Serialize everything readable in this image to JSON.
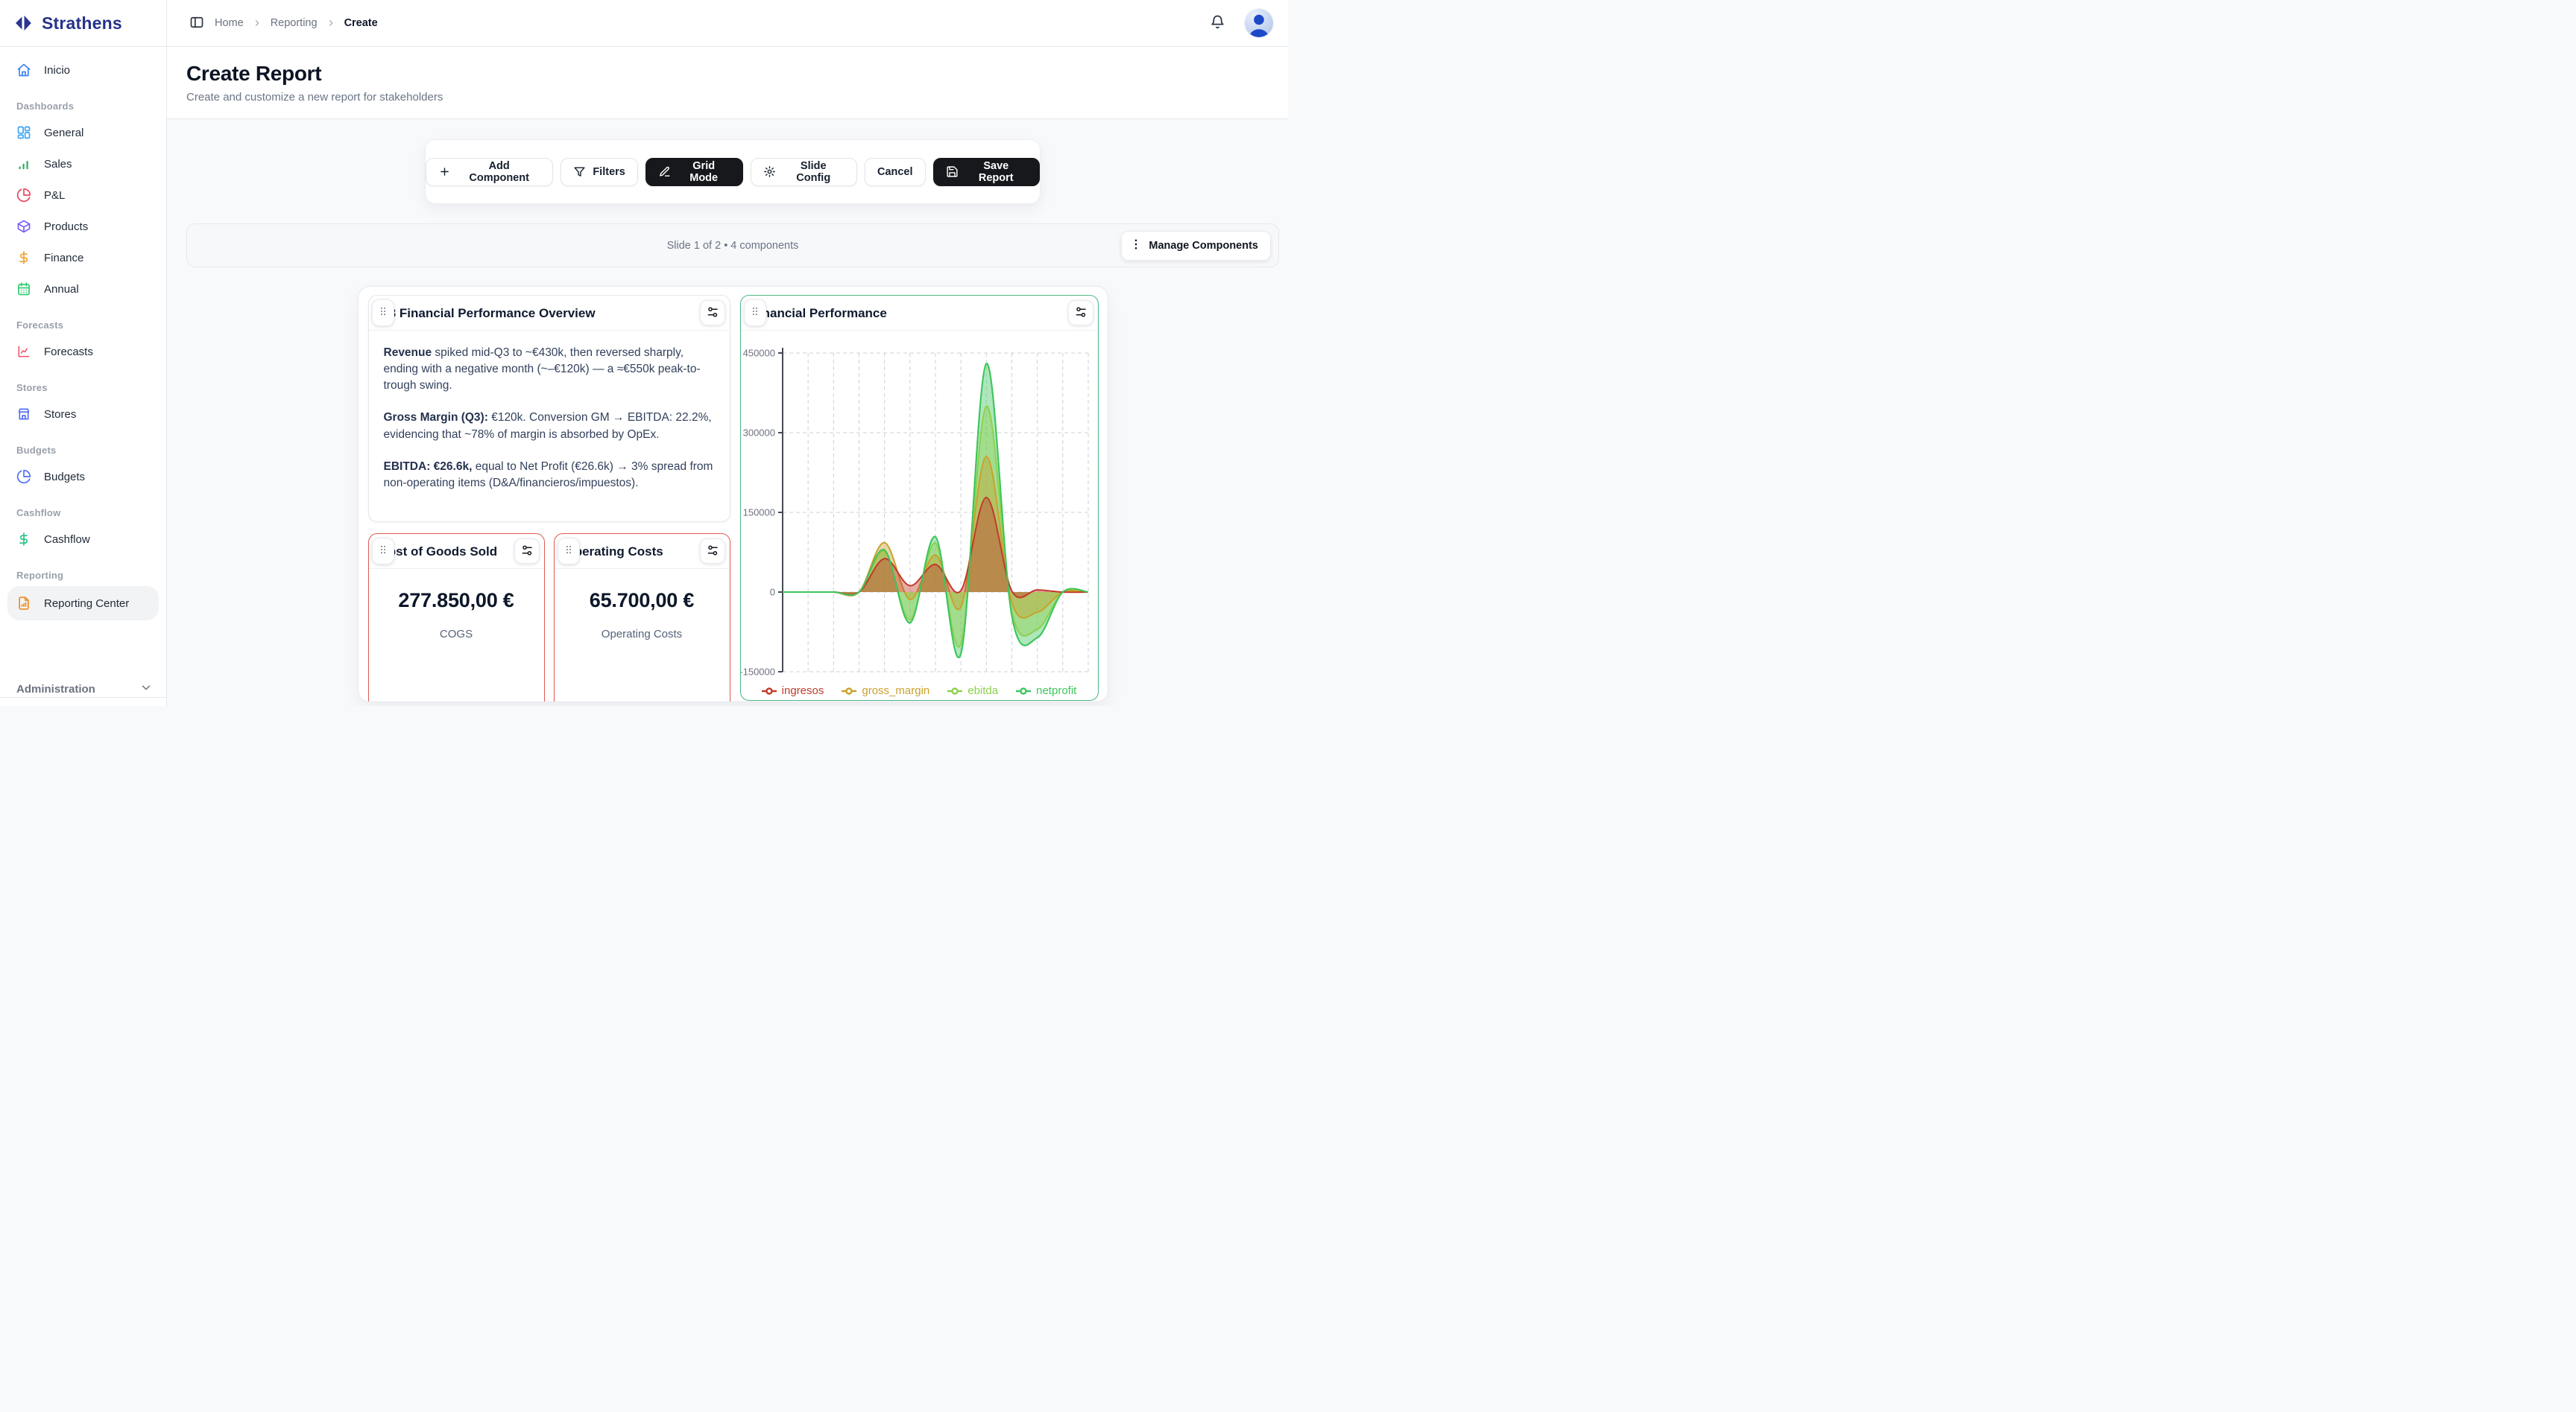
{
  "brand": {
    "name": "Strathens",
    "color": "#27338a"
  },
  "topbar": {
    "breadcrumb": [
      {
        "label": "Home",
        "current": false
      },
      {
        "label": "Reporting",
        "current": false
      },
      {
        "label": "Create",
        "current": true
      }
    ]
  },
  "page": {
    "title": "Create Report",
    "subtitle": "Create and customize a new report for stakeholders"
  },
  "toolbar": {
    "buttons": [
      {
        "id": "add-component",
        "label": "Add Component",
        "icon": "plus",
        "variant": "light"
      },
      {
        "id": "filters",
        "label": "Filters",
        "icon": "funnel",
        "variant": "light"
      },
      {
        "id": "grid-mode",
        "label": "Grid Mode",
        "icon": "pencil",
        "variant": "dark"
      },
      {
        "id": "slide-config",
        "label": "Slide Config",
        "icon": "gear",
        "variant": "light"
      },
      {
        "id": "cancel",
        "label": "Cancel",
        "icon": null,
        "variant": "light"
      },
      {
        "id": "save-report",
        "label": "Save Report",
        "icon": "save",
        "variant": "dark"
      }
    ]
  },
  "slidebar": {
    "status": "Slide 1 of 2 • 4 components",
    "manage_label": "Manage Components"
  },
  "sidebar": {
    "admin_label": "Administration",
    "groups": [
      {
        "section": null,
        "items": [
          {
            "label": "Inicio",
            "icon": "home",
            "color": "#3b82f6"
          }
        ]
      },
      {
        "section": "Dashboards",
        "items": [
          {
            "label": "General",
            "icon": "grid",
            "color": "#38a4f8"
          },
          {
            "label": "Sales",
            "icon": "bar-chart",
            "color": "#27ae60"
          },
          {
            "label": "P&L",
            "icon": "pie-chart",
            "color": "#e8475f"
          },
          {
            "label": "Products",
            "icon": "box",
            "color": "#7b5cf0"
          },
          {
            "label": "Finance",
            "icon": "dollar",
            "color": "#f0a030"
          },
          {
            "label": "Annual",
            "icon": "calendar",
            "color": "#2ecc71"
          }
        ]
      },
      {
        "section": "Forecasts",
        "items": [
          {
            "label": "Forecasts",
            "icon": "line-chart",
            "color": "#ef5a72"
          }
        ]
      },
      {
        "section": "Stores",
        "items": [
          {
            "label": "Stores",
            "icon": "store",
            "color": "#4f6df5"
          }
        ]
      },
      {
        "section": "Budgets",
        "items": [
          {
            "label": "Budgets",
            "icon": "pie-chart",
            "color": "#4f6df5"
          }
        ]
      },
      {
        "section": "Cashflow",
        "items": [
          {
            "label": "Cashflow",
            "icon": "dollar",
            "color": "#27c281"
          }
        ]
      },
      {
        "section": "Reporting",
        "items": [
          {
            "label": "Reporting Center",
            "icon": "file-chart",
            "color": "#f08b18",
            "active": true
          }
        ]
      }
    ]
  },
  "components": {
    "overview": {
      "title": "Q3 Financial Performance Overview",
      "paragraphs": [
        {
          "lead": "Revenue",
          "rest": " spiked mid-Q3 to ~€430k, then reversed sharply, ending with a negative month (~–€120k) — a ≈€550k peak-to-trough swing."
        },
        {
          "lead": "Gross Margin (Q3):",
          "rest": " €120k. Conversion GM → EBITDA: 22.2%, evidencing that ~78% of margin is absorbed by OpEx."
        },
        {
          "lead": "EBITDA: €26.6k,",
          "rest": " equal to Net Profit (€26.6k) → 3% spread from non-operating items (D&A/financieros/impuestos)."
        }
      ]
    },
    "cogs": {
      "title": "Cost of Goods Sold",
      "value": "277.850,00 €",
      "label": "COGS",
      "accent": "#df5b52"
    },
    "opex": {
      "title": "Operating Costs",
      "value": "65.700,00 €",
      "label": "Operating Costs",
      "accent": "#df5b52"
    },
    "chart": {
      "title": "Financial Performance",
      "accent": "#4db886",
      "chart_data": {
        "type": "area",
        "title": "Financial Performance",
        "x": [
          0,
          1,
          2,
          3,
          4,
          5,
          6,
          7,
          8,
          9,
          10,
          11,
          12
        ],
        "series": [
          {
            "name": "ingresos",
            "color": "#c23a2b",
            "values": [
              0,
              0,
              0,
              0,
              63000,
              12000,
              52000,
              3000,
              178000,
              2000,
              4000,
              0,
              0
            ]
          },
          {
            "name": "gross_margin",
            "color": "#c9a12d",
            "values": [
              0,
              0,
              0,
              0,
              93000,
              -14000,
              70000,
              -28000,
              255000,
              -20000,
              -38000,
              0,
              0
            ]
          },
          {
            "name": "ebitda",
            "color": "#8ed04e",
            "values": [
              0,
              0,
              0,
              0,
              76000,
              -52000,
              92000,
              -98000,
              350000,
              -38000,
              -70000,
              0,
              0
            ]
          },
          {
            "name": "netprofit",
            "color": "#3fc55e",
            "values": [
              0,
              0,
              0,
              0,
              79000,
              -58000,
              104000,
              -116000,
              430000,
              -45000,
              -86000,
              0,
              0
            ]
          }
        ],
        "ylim": [
          -150000,
          450000
        ],
        "yticks": [
          450000,
          300000,
          150000,
          0,
          -150000
        ],
        "xlabel": "",
        "ylabel": "",
        "grid": true,
        "smooth": true,
        "legend_position": "bottom",
        "fill_opacity": 0.42,
        "draw_order": [
          "netprofit",
          "ebitda",
          "gross_margin",
          "ingresos"
        ]
      }
    }
  }
}
